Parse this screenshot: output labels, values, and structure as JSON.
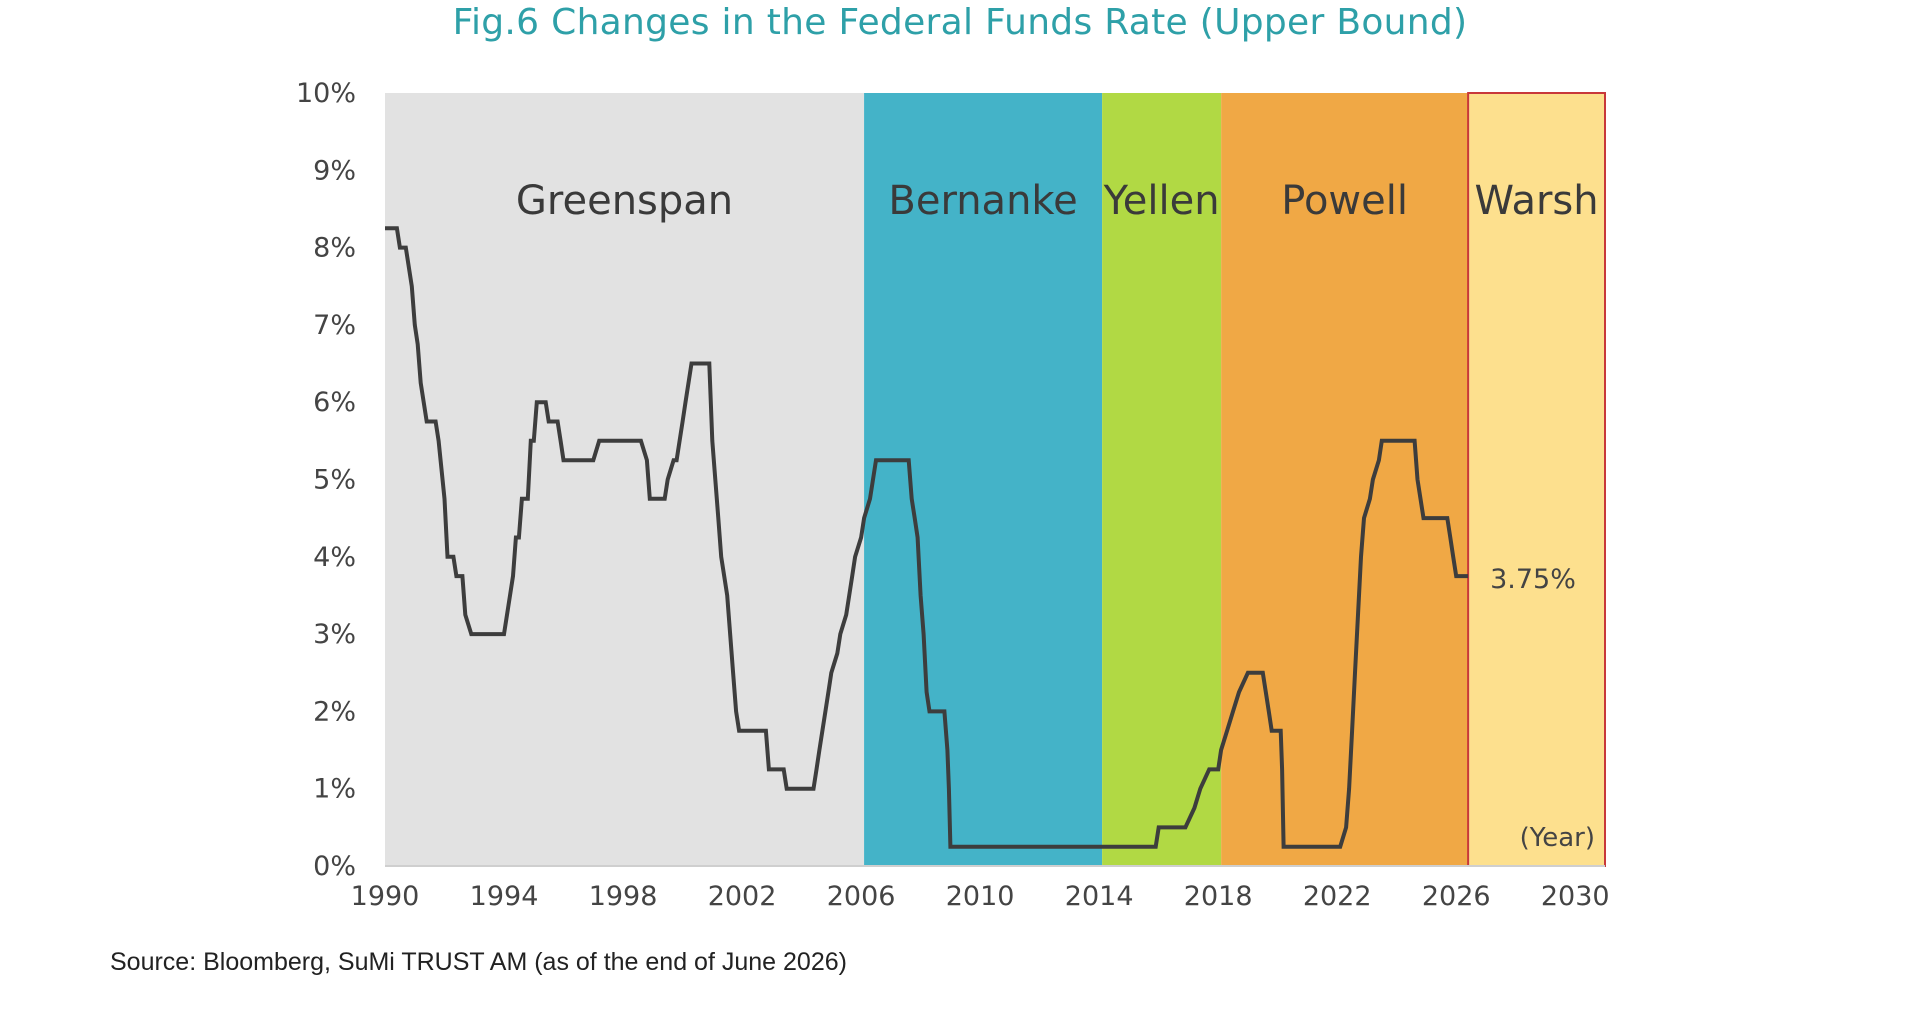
{
  "title": "Fig.6 Changes in the Federal Funds Rate (Upper Bound)",
  "source": "Source: Bloomberg, SuMi TRUST AM (as of the end of June 2026)",
  "colors": {
    "title": "#2ea0a8",
    "line": "#3d3d3d",
    "greenspan": "#e2e2e2",
    "bernanke": "#44b3c8",
    "yellen": "#b1d944",
    "powell": "#f0a845",
    "warsh": "#fde08e",
    "warsh_border": "#c8383a"
  },
  "chart_data": {
    "type": "line",
    "title": "Fig.6 Changes in the Federal Funds Rate (Upper Bound)",
    "xlabel": "(Year)",
    "ylabel": "",
    "xlim": [
      1990,
      2031
    ],
    "ylim": [
      0,
      10
    ],
    "y_ticks": [
      "0%",
      "1%",
      "2%",
      "3%",
      "4%",
      "5%",
      "6%",
      "7%",
      "8%",
      "9%",
      "10%"
    ],
    "x_ticks": [
      "1990",
      "1994",
      "1998",
      "2002",
      "2006",
      "2010",
      "2014",
      "2018",
      "2022",
      "2026",
      "2030"
    ],
    "grid": false,
    "regions": [
      {
        "label": "Greenspan",
        "from": 1990,
        "to": 2006.1
      },
      {
        "label": "Bernanke",
        "from": 2006.1,
        "to": 2014.1
      },
      {
        "label": "Yellen",
        "from": 2014.1,
        "to": 2018.1
      },
      {
        "label": "Powell",
        "from": 2018.1,
        "to": 2026.4
      },
      {
        "label": "Warsh",
        "from": 2026.4,
        "to": 2031
      }
    ],
    "annotations": [
      {
        "text": "3.75%",
        "x": 2026.4,
        "y": 3.75
      }
    ],
    "series": [
      {
        "values": [
          [
            1990.0,
            8.25
          ],
          [
            1990.4,
            8.25
          ],
          [
            1990.5,
            8.0
          ],
          [
            1990.7,
            8.0
          ],
          [
            1990.9,
            7.5
          ],
          [
            1991.0,
            7.0
          ],
          [
            1991.1,
            6.75
          ],
          [
            1991.2,
            6.25
          ],
          [
            1991.4,
            5.75
          ],
          [
            1991.7,
            5.75
          ],
          [
            1991.8,
            5.5
          ],
          [
            1992.0,
            4.75
          ],
          [
            1992.1,
            4.0
          ],
          [
            1992.3,
            4.0
          ],
          [
            1992.4,
            3.75
          ],
          [
            1992.6,
            3.75
          ],
          [
            1992.7,
            3.25
          ],
          [
            1992.9,
            3.0
          ],
          [
            1994.0,
            3.0
          ],
          [
            1994.1,
            3.25
          ],
          [
            1994.2,
            3.5
          ],
          [
            1994.3,
            3.75
          ],
          [
            1994.4,
            4.25
          ],
          [
            1994.5,
            4.25
          ],
          [
            1994.6,
            4.75
          ],
          [
            1994.8,
            4.75
          ],
          [
            1994.9,
            5.5
          ],
          [
            1995.0,
            5.5
          ],
          [
            1995.1,
            6.0
          ],
          [
            1995.4,
            6.0
          ],
          [
            1995.5,
            5.75
          ],
          [
            1995.8,
            5.75
          ],
          [
            1995.9,
            5.5
          ],
          [
            1996.0,
            5.25
          ],
          [
            1997.0,
            5.25
          ],
          [
            1997.2,
            5.5
          ],
          [
            1998.6,
            5.5
          ],
          [
            1998.8,
            5.25
          ],
          [
            1998.9,
            4.75
          ],
          [
            1999.4,
            4.75
          ],
          [
            1999.5,
            5.0
          ],
          [
            1999.7,
            5.25
          ],
          [
            1999.8,
            5.25
          ],
          [
            1999.9,
            5.5
          ],
          [
            2000.0,
            5.75
          ],
          [
            2000.1,
            6.0
          ],
          [
            2000.3,
            6.5
          ],
          [
            2000.9,
            6.5
          ],
          [
            2001.0,
            5.5
          ],
          [
            2001.1,
            5.0
          ],
          [
            2001.2,
            4.5
          ],
          [
            2001.3,
            4.0
          ],
          [
            2001.4,
            3.75
          ],
          [
            2001.5,
            3.5
          ],
          [
            2001.7,
            2.5
          ],
          [
            2001.8,
            2.0
          ],
          [
            2001.9,
            1.75
          ],
          [
            2002.8,
            1.75
          ],
          [
            2002.9,
            1.25
          ],
          [
            2003.4,
            1.25
          ],
          [
            2003.5,
            1.0
          ],
          [
            2004.4,
            1.0
          ],
          [
            2004.5,
            1.25
          ],
          [
            2004.6,
            1.5
          ],
          [
            2004.7,
            1.75
          ],
          [
            2004.8,
            2.0
          ],
          [
            2004.9,
            2.25
          ],
          [
            2005.0,
            2.5
          ],
          [
            2005.2,
            2.75
          ],
          [
            2005.3,
            3.0
          ],
          [
            2005.5,
            3.25
          ],
          [
            2005.6,
            3.5
          ],
          [
            2005.7,
            3.75
          ],
          [
            2005.8,
            4.0
          ],
          [
            2006.0,
            4.25
          ],
          [
            2006.1,
            4.5
          ],
          [
            2006.3,
            4.75
          ],
          [
            2006.4,
            5.0
          ],
          [
            2006.5,
            5.25
          ],
          [
            2007.6,
            5.25
          ],
          [
            2007.7,
            4.75
          ],
          [
            2007.8,
            4.5
          ],
          [
            2007.9,
            4.25
          ],
          [
            2008.0,
            3.5
          ],
          [
            2008.1,
            3.0
          ],
          [
            2008.2,
            2.25
          ],
          [
            2008.3,
            2.0
          ],
          [
            2008.8,
            2.0
          ],
          [
            2008.9,
            1.5
          ],
          [
            2008.95,
            1.0
          ],
          [
            2009.0,
            0.25
          ],
          [
            2015.9,
            0.25
          ],
          [
            2016.0,
            0.5
          ],
          [
            2016.9,
            0.5
          ],
          [
            2017.2,
            0.75
          ],
          [
            2017.4,
            1.0
          ],
          [
            2017.7,
            1.25
          ],
          [
            2018.0,
            1.25
          ],
          [
            2018.1,
            1.5
          ],
          [
            2018.3,
            1.75
          ],
          [
            2018.5,
            2.0
          ],
          [
            2018.7,
            2.25
          ],
          [
            2019.0,
            2.5
          ],
          [
            2019.5,
            2.5
          ],
          [
            2019.6,
            2.25
          ],
          [
            2019.7,
            2.0
          ],
          [
            2019.8,
            1.75
          ],
          [
            2020.1,
            1.75
          ],
          [
            2020.15,
            1.25
          ],
          [
            2020.2,
            0.25
          ],
          [
            2022.1,
            0.25
          ],
          [
            2022.3,
            0.5
          ],
          [
            2022.4,
            1.0
          ],
          [
            2022.5,
            1.75
          ],
          [
            2022.6,
            2.5
          ],
          [
            2022.7,
            3.25
          ],
          [
            2022.8,
            4.0
          ],
          [
            2022.9,
            4.5
          ],
          [
            2023.1,
            4.75
          ],
          [
            2023.2,
            5.0
          ],
          [
            2023.4,
            5.25
          ],
          [
            2023.5,
            5.5
          ],
          [
            2024.6,
            5.5
          ],
          [
            2024.7,
            5.0
          ],
          [
            2024.8,
            4.75
          ],
          [
            2024.9,
            4.5
          ],
          [
            2025.7,
            4.5
          ],
          [
            2025.8,
            4.25
          ],
          [
            2025.9,
            4.0
          ],
          [
            2026.0,
            3.75
          ],
          [
            2026.4,
            3.75
          ]
        ]
      }
    ]
  }
}
